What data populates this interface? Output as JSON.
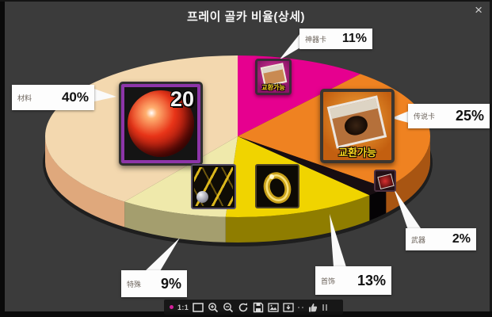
{
  "window": {
    "close_label": "×"
  },
  "chart_data": {
    "type": "pie",
    "style": "3d-exploded-callouts",
    "title": "프레이 골카 비율(상세)",
    "start_angle_deg": -90,
    "direction": "clockwise",
    "legend_position": "callout-labels",
    "slices": [
      {
        "label": "神器卡",
        "value": 11,
        "pct": "11%",
        "color": "#e6008f",
        "side_color": "#8f0059"
      },
      {
        "label": "传说卡",
        "value": 25,
        "pct": "25%",
        "color": "#ef8221",
        "side_color": "#a85512"
      },
      {
        "label": "武器",
        "value": 2,
        "pct": "2%",
        "color": "#170d11",
        "side_color": "#050305"
      },
      {
        "label": "首饰",
        "value": 13,
        "pct": "13%",
        "color": "#f0d400",
        "side_color": "#8f7d00"
      },
      {
        "label": "特殊",
        "value": 9,
        "pct": "9%",
        "color": "#efe9ab",
        "side_color": "#a49e6e"
      },
      {
        "label": "材料",
        "value": 40,
        "pct": "40%",
        "color": "#f3d8af",
        "side_color": "#dfa87c"
      }
    ]
  },
  "overlays": {
    "orb_badge": "20",
    "tradable_label": "교환가능"
  },
  "toolbar": {
    "actual_size_label": "1:1",
    "icons": [
      "pink-dot",
      "actual-size",
      "fit-screen",
      "zoom-in",
      "zoom-out",
      "rotate",
      "save",
      "image",
      "export",
      "like"
    ]
  }
}
